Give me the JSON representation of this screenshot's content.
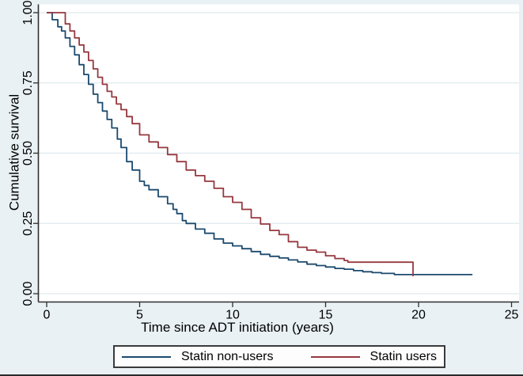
{
  "chart_data": {
    "type": "line",
    "subtype": "kaplan-meier-step",
    "title": "",
    "xlabel": "Time since ADT initiation (years)",
    "ylabel": "Cumulative survival",
    "xlim": [
      0,
      25
    ],
    "ylim": [
      0,
      1
    ],
    "grid": "horizontal",
    "legend_position": "bottom",
    "xticks": [
      {
        "value": 0,
        "label": "0"
      },
      {
        "value": 5,
        "label": "5"
      },
      {
        "value": 10,
        "label": "10"
      },
      {
        "value": 15,
        "label": "15"
      },
      {
        "value": 20,
        "label": "20"
      },
      {
        "value": 25,
        "label": "25"
      }
    ],
    "yticks": [
      {
        "value": 0.0,
        "label": "0.00"
      },
      {
        "value": 0.25,
        "label": "0.25"
      },
      {
        "value": 0.5,
        "label": "0.50"
      },
      {
        "value": 0.75,
        "label": "0.75"
      },
      {
        "value": 1.0,
        "label": "1.00"
      }
    ],
    "series": [
      {
        "name": "Statin non-users",
        "color": "#1b4a6e",
        "points": [
          [
            0,
            1.0
          ],
          [
            0.3,
            0.975
          ],
          [
            0.6,
            0.95
          ],
          [
            0.8,
            0.935
          ],
          [
            1,
            0.91
          ],
          [
            1.25,
            0.88
          ],
          [
            1.5,
            0.85
          ],
          [
            1.75,
            0.815
          ],
          [
            2,
            0.78
          ],
          [
            2.25,
            0.745
          ],
          [
            2.5,
            0.71
          ],
          [
            2.75,
            0.68
          ],
          [
            3,
            0.65
          ],
          [
            3.25,
            0.62
          ],
          [
            3.5,
            0.59
          ],
          [
            3.8,
            0.55
          ],
          [
            4,
            0.52
          ],
          [
            4.3,
            0.47
          ],
          [
            4.6,
            0.44
          ],
          [
            5,
            0.4
          ],
          [
            5.25,
            0.385
          ],
          [
            5.5,
            0.37
          ],
          [
            6,
            0.345
          ],
          [
            6.5,
            0.32
          ],
          [
            6.8,
            0.3
          ],
          [
            7,
            0.285
          ],
          [
            7.3,
            0.26
          ],
          [
            7.5,
            0.25
          ],
          [
            8,
            0.23
          ],
          [
            8.5,
            0.215
          ],
          [
            9,
            0.195
          ],
          [
            9.5,
            0.18
          ],
          [
            10,
            0.17
          ],
          [
            10.5,
            0.16
          ],
          [
            11,
            0.15
          ],
          [
            11.5,
            0.14
          ],
          [
            12,
            0.133
          ],
          [
            12.5,
            0.127
          ],
          [
            13,
            0.12
          ],
          [
            13.5,
            0.113
          ],
          [
            14,
            0.105
          ],
          [
            14.5,
            0.1
          ],
          [
            15,
            0.095
          ],
          [
            15.5,
            0.09
          ],
          [
            16,
            0.087
          ],
          [
            16.5,
            0.082
          ],
          [
            17,
            0.078
          ],
          [
            17.5,
            0.075
          ],
          [
            18,
            0.072
          ],
          [
            18.7,
            0.068
          ],
          [
            22.9,
            0.068
          ]
        ]
      },
      {
        "name": "Statin users",
        "color": "#96383f",
        "points": [
          [
            0,
            1.0
          ],
          [
            0.77,
            1.0
          ],
          [
            1,
            0.96
          ],
          [
            1.25,
            0.935
          ],
          [
            1.5,
            0.91
          ],
          [
            1.75,
            0.885
          ],
          [
            2,
            0.86
          ],
          [
            2.25,
            0.83
          ],
          [
            2.5,
            0.8
          ],
          [
            2.75,
            0.77
          ],
          [
            3,
            0.745
          ],
          [
            3.25,
            0.72
          ],
          [
            3.5,
            0.7
          ],
          [
            3.75,
            0.675
          ],
          [
            4,
            0.655
          ],
          [
            4.3,
            0.63
          ],
          [
            4.6,
            0.605
          ],
          [
            5,
            0.565
          ],
          [
            5.5,
            0.54
          ],
          [
            6,
            0.52
          ],
          [
            6.5,
            0.495
          ],
          [
            7,
            0.47
          ],
          [
            7.5,
            0.44
          ],
          [
            8,
            0.42
          ],
          [
            8.5,
            0.4
          ],
          [
            9,
            0.375
          ],
          [
            9.5,
            0.345
          ],
          [
            10,
            0.325
          ],
          [
            10.5,
            0.3
          ],
          [
            11,
            0.27
          ],
          [
            11.5,
            0.248
          ],
          [
            12,
            0.225
          ],
          [
            12.5,
            0.21
          ],
          [
            13,
            0.185
          ],
          [
            13.5,
            0.165
          ],
          [
            14,
            0.155
          ],
          [
            14.5,
            0.148
          ],
          [
            15,
            0.135
          ],
          [
            15.5,
            0.125
          ],
          [
            16,
            0.118
          ],
          [
            16.2,
            0.112
          ],
          [
            19.7,
            0.112
          ],
          [
            19.7,
            0.062
          ]
        ]
      }
    ]
  },
  "legend": {
    "items": [
      {
        "label": "Statin non-users",
        "color": "#1b4a6e"
      },
      {
        "label": "Statin users",
        "color": "#96383f"
      }
    ]
  },
  "colors": {
    "background": "#e9f1f4",
    "plot_background": "#ffffff",
    "gridline": "#dfeaee",
    "axis": "#2f2f2f",
    "text": "#000000"
  }
}
